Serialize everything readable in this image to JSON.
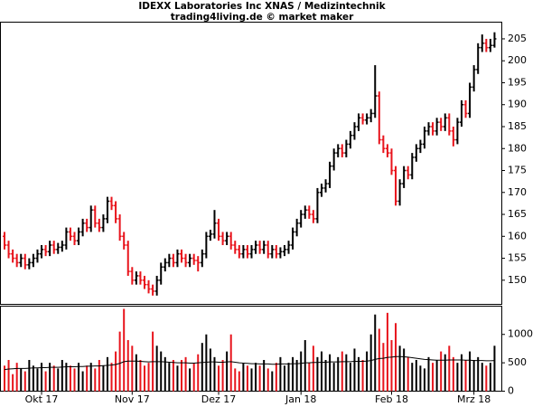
{
  "chart_data": {
    "type": "ohlc",
    "title": "IDEXX Laboratories Inc XNAS / Medizintechnik",
    "subtitle": "trading4living.de © market maker",
    "up_color": "#000000",
    "down_color": "#e8141c",
    "ma_color": "#000000",
    "categories": [
      null,
      null,
      null,
      null,
      null,
      null,
      null,
      null,
      null,
      "Okt 17",
      null,
      null,
      null,
      null,
      null,
      null,
      null,
      null,
      null,
      null,
      null,
      null,
      null,
      null,
      null,
      null,
      null,
      null,
      null,
      null,
      null,
      "Nov 17",
      null,
      null,
      null,
      null,
      null,
      null,
      null,
      null,
      null,
      null,
      null,
      null,
      null,
      null,
      null,
      null,
      null,
      null,
      null,
      null,
      "Dez 17",
      null,
      null,
      null,
      null,
      null,
      null,
      null,
      null,
      null,
      null,
      null,
      null,
      null,
      null,
      null,
      null,
      null,
      null,
      null,
      "Jan 18",
      null,
      null,
      null,
      null,
      null,
      null,
      null,
      null,
      null,
      null,
      null,
      null,
      null,
      null,
      null,
      null,
      null,
      null,
      null,
      null,
      null,
      "Feb 18",
      null,
      null,
      null,
      null,
      null,
      null,
      null,
      null,
      null,
      null,
      null,
      null,
      null,
      null,
      null,
      null,
      null,
      null,
      null,
      "Mrz 18",
      null,
      null,
      null,
      null,
      null
    ],
    "open": [
      160,
      158,
      156,
      155,
      154,
      155,
      153.5,
      154,
      155,
      156,
      157,
      156.5,
      158,
      157,
      157.5,
      158,
      161,
      160,
      159,
      161,
      163,
      162,
      166,
      163,
      162,
      164,
      168,
      167,
      164,
      160,
      158,
      152,
      150,
      151,
      150,
      149,
      148,
      147.5,
      150,
      153,
      154,
      155,
      154,
      156,
      155,
      154,
      155,
      154.5,
      154,
      156,
      160,
      160.5,
      163,
      160,
      159,
      160,
      158,
      157,
      156,
      157,
      156,
      157,
      158,
      157,
      158,
      156,
      157,
      156,
      156.5,
      157,
      158,
      161,
      163,
      165,
      166,
      165,
      164,
      170,
      171,
      172,
      176,
      179,
      180,
      179,
      181,
      183,
      185,
      187,
      186.5,
      187,
      188,
      192,
      182,
      180,
      179,
      175,
      168,
      172,
      175,
      174,
      178,
      180,
      181,
      184,
      185,
      184,
      186,
      185,
      187,
      184,
      182,
      186,
      190,
      188,
      194,
      198,
      203,
      204,
      203,
      203.5
    ],
    "high": [
      161,
      159,
      157,
      156,
      156,
      156,
      155,
      156,
      157,
      158,
      158,
      159,
      159,
      158.5,
      159,
      162,
      162,
      161,
      162,
      164,
      164,
      167,
      167,
      164,
      165,
      169,
      169,
      168,
      165,
      161,
      159,
      153,
      152,
      152,
      151,
      150,
      149,
      151,
      154,
      155,
      156,
      156,
      157,
      157,
      156,
      156,
      156,
      155.5,
      157,
      161,
      161.5,
      166,
      164,
      161,
      161,
      161,
      159,
      158,
      158,
      158,
      158,
      159,
      159,
      159,
      159,
      158,
      158,
      157.5,
      158,
      159,
      162,
      164,
      166,
      167,
      167,
      166,
      171,
      172,
      173,
      177,
      180,
      181,
      181,
      182,
      184,
      186,
      188,
      188,
      188,
      189,
      199,
      193,
      183,
      181,
      180,
      176,
      173,
      176,
      176,
      179,
      181,
      182,
      185,
      186,
      186,
      187,
      187,
      188,
      188,
      185,
      187,
      191,
      191,
      195,
      199,
      204,
      206,
      205,
      205,
      206.5
    ],
    "low": [
      157,
      155,
      154,
      153,
      153,
      152.5,
      152.5,
      153,
      154,
      155,
      155.5,
      155.5,
      156,
      156,
      156.5,
      157,
      159,
      158,
      158,
      160,
      161,
      161,
      162,
      161,
      161,
      163,
      166,
      163,
      159,
      157,
      151,
      149,
      149,
      149,
      148,
      147,
      146.5,
      146.5,
      149,
      152,
      153,
      153,
      153,
      154,
      153,
      153,
      153.5,
      152,
      153,
      155,
      159,
      159.5,
      159,
      158,
      158,
      157,
      156,
      155,
      155,
      155,
      155,
      156,
      156,
      156,
      155,
      155,
      155,
      155,
      155.5,
      156,
      157,
      160,
      162,
      164,
      164,
      163,
      163,
      169,
      170,
      171,
      175,
      178,
      178,
      178,
      180,
      182,
      184,
      185.5,
      185.5,
      186,
      187,
      181,
      179,
      178,
      174,
      167,
      167,
      171,
      173,
      173,
      177,
      179,
      180,
      183,
      183,
      183,
      184,
      184,
      183,
      180.5,
      181,
      185,
      187,
      187,
      193,
      197,
      202,
      202,
      202,
      203
    ],
    "close": [
      158,
      156,
      155,
      154,
      155,
      153.5,
      154,
      155,
      156,
      157,
      156.5,
      158,
      157,
      157.5,
      158,
      161,
      160,
      159,
      161,
      163,
      162,
      166,
      163,
      162,
      164,
      168,
      167,
      164,
      160,
      158,
      152,
      150,
      151,
      150,
      149,
      148,
      147.5,
      150,
      153,
      154,
      155,
      154,
      156,
      155,
      154,
      155,
      154.5,
      154,
      156,
      160,
      160.5,
      163,
      160,
      159,
      160,
      158,
      157,
      156,
      157,
      156,
      157,
      158,
      157,
      158,
      156,
      157,
      156,
      156.5,
      157,
      158,
      161,
      163,
      165,
      166,
      165,
      164,
      170,
      171,
      172,
      176,
      179,
      180,
      179,
      181,
      183,
      185,
      187,
      186.5,
      187,
      188,
      192,
      182,
      180,
      179,
      175,
      168,
      172,
      175,
      174,
      178,
      180,
      181,
      184,
      185,
      184,
      186,
      185,
      187,
      184,
      182,
      186,
      190,
      188,
      194,
      198,
      203,
      204,
      203,
      203.5,
      205
    ],
    "volume": [
      450,
      550,
      300,
      500,
      400,
      350,
      550,
      450,
      400,
      500,
      350,
      500,
      450,
      400,
      550,
      500,
      450,
      400,
      500,
      350,
      450,
      500,
      400,
      550,
      450,
      600,
      500,
      700,
      1050,
      1450,
      900,
      800,
      650,
      550,
      450,
      500,
      1050,
      800,
      700,
      600,
      500,
      550,
      450,
      550,
      600,
      400,
      500,
      650,
      850,
      1000,
      750,
      600,
      450,
      550,
      700,
      1000,
      400,
      350,
      500,
      450,
      400,
      500,
      450,
      550,
      400,
      350,
      500,
      600,
      450,
      500,
      600,
      550,
      700,
      900,
      500,
      800,
      600,
      700,
      550,
      650,
      500,
      600,
      700,
      650,
      500,
      750,
      600,
      550,
      700,
      1000,
      1350,
      1100,
      850,
      1380,
      900,
      1200,
      800,
      750,
      600,
      500,
      550,
      450,
      400,
      600,
      500,
      550,
      700,
      650,
      800,
      600,
      500,
      650,
      550,
      700,
      550,
      600,
      500,
      450,
      500,
      800
    ],
    "volume_ma": [
      380,
      390,
      395,
      400,
      400,
      400,
      405,
      410,
      410,
      415,
      415,
      420,
      420,
      420,
      425,
      430,
      430,
      430,
      435,
      435,
      440,
      440,
      445,
      445,
      450,
      455,
      460,
      470,
      490,
      520,
      530,
      530,
      530,
      525,
      520,
      515,
      520,
      520,
      520,
      515,
      510,
      505,
      500,
      500,
      500,
      495,
      495,
      500,
      505,
      510,
      515,
      515,
      510,
      510,
      515,
      520,
      510,
      500,
      495,
      490,
      485,
      485,
      480,
      480,
      480,
      475,
      475,
      480,
      480,
      480,
      485,
      485,
      490,
      500,
      500,
      505,
      505,
      510,
      510,
      515,
      515,
      515,
      520,
      520,
      520,
      525,
      525,
      525,
      530,
      540,
      560,
      575,
      580,
      595,
      600,
      610,
      610,
      605,
      600,
      590,
      580,
      570,
      560,
      555,
      550,
      545,
      545,
      545,
      550,
      550,
      550,
      550,
      545,
      545,
      540,
      540,
      540,
      535,
      535,
      540
    ],
    "ylim": [
      144.5,
      208.7
    ],
    "yticks": [
      150,
      155,
      160,
      165,
      170,
      175,
      180,
      185,
      190,
      195,
      200,
      205
    ],
    "y2lim": [
      0,
      1490
    ],
    "y2ticks": [
      0,
      500,
      1000
    ]
  }
}
